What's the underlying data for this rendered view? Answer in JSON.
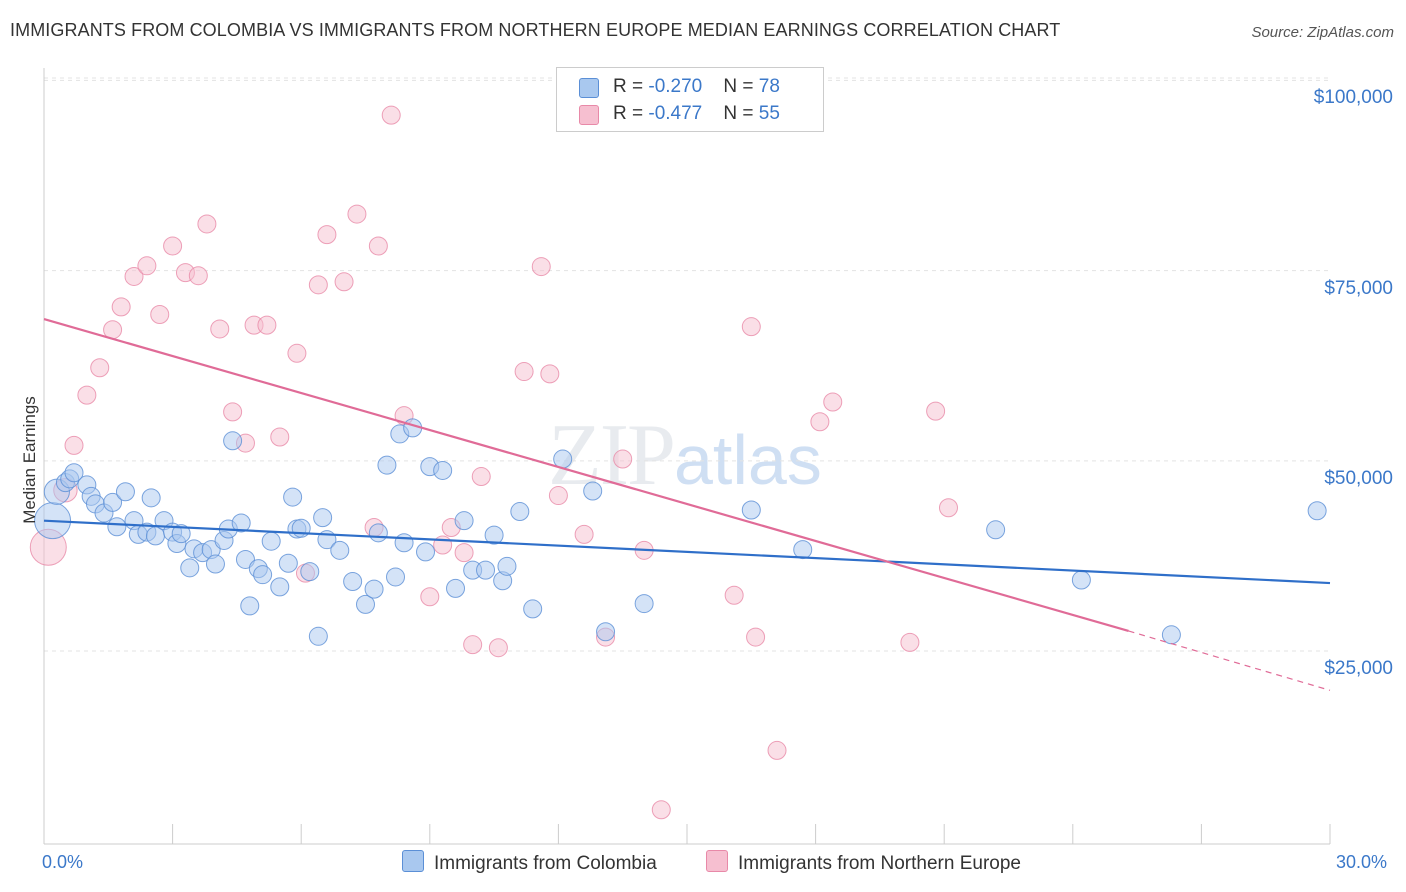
{
  "header": {
    "title": "IMMIGRANTS FROM COLOMBIA VS IMMIGRANTS FROM NORTHERN EUROPE MEDIAN EARNINGS CORRELATION CHART",
    "source": "Source: ZipAtlas.com"
  },
  "watermark": {
    "zip": "ZIP",
    "atlas": "atlas"
  },
  "stats": {
    "colombia": {
      "r_label": "R = ",
      "r": "-0.270",
      "n_label": "N = ",
      "n": "78"
    },
    "northern_europe": {
      "r_label": "R = ",
      "r": "-0.477",
      "n_label": "N = ",
      "n": "55"
    }
  },
  "legend": {
    "colombia": "Immigrants from Colombia",
    "northern_europe": "Immigrants from Northern Europe"
  },
  "colors": {
    "colombia_fill": "#a9c8ef",
    "colombia_stroke": "#5b8fd6",
    "colombia_line": "#2f6fc9",
    "ne_fill": "#f6bfd0",
    "ne_stroke": "#e889a8",
    "ne_line": "#e06b97",
    "axis_text": "#3b78c9"
  },
  "chart_data": {
    "type": "scatter",
    "xlabel": "",
    "ylabel": "Median Earnings",
    "xlim": [
      0,
      30
    ],
    "ylim": [
      2000,
      104000
    ],
    "x_tick_labels": {
      "left": "0.0%",
      "right": "30.0%"
    },
    "y_ticks": [
      {
        "value": 25000,
        "label": "$25,000"
      },
      {
        "value": 50000,
        "label": "$50,000"
      },
      {
        "value": 75000,
        "label": "$75,000"
      },
      {
        "value": 100000,
        "label": "$100,000"
      }
    ],
    "grid": "horizontal dashed",
    "legend_position": "bottom-center",
    "series": [
      {
        "name": "Immigrants from Colombia",
        "trend": {
          "x": [
            0,
            30
          ],
          "y": [
            44500,
            36300
          ]
        },
        "points": [
          {
            "x": 0.2,
            "y": 44500,
            "s": 2
          },
          {
            "x": 0.3,
            "y": 48300,
            "s": 1.4
          },
          {
            "x": 0.5,
            "y": 49500
          },
          {
            "x": 0.6,
            "y": 50000
          },
          {
            "x": 0.7,
            "y": 50800
          },
          {
            "x": 1.0,
            "y": 49200
          },
          {
            "x": 1.1,
            "y": 47700
          },
          {
            "x": 1.2,
            "y": 46700
          },
          {
            "x": 1.4,
            "y": 45500
          },
          {
            "x": 1.6,
            "y": 46900
          },
          {
            "x": 1.7,
            "y": 43700
          },
          {
            "x": 1.9,
            "y": 48300
          },
          {
            "x": 2.1,
            "y": 44500
          },
          {
            "x": 2.2,
            "y": 42700
          },
          {
            "x": 2.4,
            "y": 43000
          },
          {
            "x": 2.5,
            "y": 47500
          },
          {
            "x": 2.6,
            "y": 42500
          },
          {
            "x": 2.8,
            "y": 44500
          },
          {
            "x": 3.0,
            "y": 43000
          },
          {
            "x": 3.1,
            "y": 41500
          },
          {
            "x": 3.2,
            "y": 42800
          },
          {
            "x": 3.4,
            "y": 38300
          },
          {
            "x": 3.5,
            "y": 40800
          },
          {
            "x": 3.7,
            "y": 40300
          },
          {
            "x": 3.9,
            "y": 40700
          },
          {
            "x": 4.0,
            "y": 38800
          },
          {
            "x": 4.2,
            "y": 41900
          },
          {
            "x": 4.3,
            "y": 43400
          },
          {
            "x": 4.4,
            "y": 55000
          },
          {
            "x": 4.6,
            "y": 44200
          },
          {
            "x": 4.7,
            "y": 39400
          },
          {
            "x": 4.8,
            "y": 33300
          },
          {
            "x": 5.0,
            "y": 38200
          },
          {
            "x": 5.1,
            "y": 37400
          },
          {
            "x": 5.3,
            "y": 41800
          },
          {
            "x": 5.5,
            "y": 35800
          },
          {
            "x": 5.7,
            "y": 38900
          },
          {
            "x": 5.8,
            "y": 47600
          },
          {
            "x": 5.9,
            "y": 43400
          },
          {
            "x": 6.0,
            "y": 43500
          },
          {
            "x": 6.2,
            "y": 37800
          },
          {
            "x": 6.4,
            "y": 29300
          },
          {
            "x": 6.5,
            "y": 44900
          },
          {
            "x": 6.6,
            "y": 42000
          },
          {
            "x": 6.9,
            "y": 40600
          },
          {
            "x": 7.2,
            "y": 36500
          },
          {
            "x": 7.5,
            "y": 33500
          },
          {
            "x": 7.7,
            "y": 35500
          },
          {
            "x": 7.8,
            "y": 42900
          },
          {
            "x": 8.0,
            "y": 51800
          },
          {
            "x": 8.2,
            "y": 37100
          },
          {
            "x": 8.3,
            "y": 55900
          },
          {
            "x": 8.4,
            "y": 41600
          },
          {
            "x": 8.6,
            "y": 56700
          },
          {
            "x": 8.9,
            "y": 40400
          },
          {
            "x": 9.0,
            "y": 51600
          },
          {
            "x": 9.3,
            "y": 51100
          },
          {
            "x": 9.6,
            "y": 35600
          },
          {
            "x": 9.8,
            "y": 44500
          },
          {
            "x": 10.0,
            "y": 38000
          },
          {
            "x": 10.3,
            "y": 38000
          },
          {
            "x": 10.5,
            "y": 42600
          },
          {
            "x": 10.7,
            "y": 36600
          },
          {
            "x": 10.8,
            "y": 38500
          },
          {
            "x": 11.1,
            "y": 45700
          },
          {
            "x": 11.4,
            "y": 32900
          },
          {
            "x": 12.1,
            "y": 52600
          },
          {
            "x": 12.8,
            "y": 48400
          },
          {
            "x": 13.1,
            "y": 29900
          },
          {
            "x": 14.0,
            "y": 33600
          },
          {
            "x": 16.5,
            "y": 45900
          },
          {
            "x": 17.7,
            "y": 40700
          },
          {
            "x": 22.2,
            "y": 43300
          },
          {
            "x": 24.2,
            "y": 36700
          },
          {
            "x": 26.3,
            "y": 29500
          },
          {
            "x": 29.7,
            "y": 45800
          }
        ]
      },
      {
        "name": "Immigrants from Northern Europe",
        "trend": {
          "x": [
            0,
            25.3
          ],
          "y": [
            71000,
            30000
          ]
        },
        "trend_dashed": {
          "x": [
            25.3,
            30
          ],
          "y": [
            30000,
            22200
          ]
        },
        "points": [
          {
            "x": 0.1,
            "y": 41000,
            "s": 2
          },
          {
            "x": 0.5,
            "y": 48500,
            "s": 1.3
          },
          {
            "x": 0.7,
            "y": 54400
          },
          {
            "x": 1.0,
            "y": 61000
          },
          {
            "x": 1.3,
            "y": 64600
          },
          {
            "x": 1.6,
            "y": 69600
          },
          {
            "x": 1.8,
            "y": 72600
          },
          {
            "x": 2.1,
            "y": 76600
          },
          {
            "x": 2.4,
            "y": 78000
          },
          {
            "x": 2.7,
            "y": 71600
          },
          {
            "x": 3.0,
            "y": 80600
          },
          {
            "x": 3.3,
            "y": 77100
          },
          {
            "x": 3.6,
            "y": 76700
          },
          {
            "x": 3.8,
            "y": 83500
          },
          {
            "x": 4.1,
            "y": 69700
          },
          {
            "x": 4.4,
            "y": 58800
          },
          {
            "x": 4.7,
            "y": 54700
          },
          {
            "x": 4.9,
            "y": 70200
          },
          {
            "x": 5.2,
            "y": 70200
          },
          {
            "x": 5.5,
            "y": 55500
          },
          {
            "x": 5.9,
            "y": 66500
          },
          {
            "x": 6.1,
            "y": 37600
          },
          {
            "x": 6.4,
            "y": 75500
          },
          {
            "x": 6.6,
            "y": 82100
          },
          {
            "x": 7.0,
            "y": 75900
          },
          {
            "x": 7.3,
            "y": 84800
          },
          {
            "x": 7.7,
            "y": 43600
          },
          {
            "x": 7.8,
            "y": 80600
          },
          {
            "x": 8.1,
            "y": 97800
          },
          {
            "x": 8.4,
            "y": 58300
          },
          {
            "x": 9.0,
            "y": 34500
          },
          {
            "x": 9.3,
            "y": 41300
          },
          {
            "x": 9.5,
            "y": 43600
          },
          {
            "x": 9.8,
            "y": 40300
          },
          {
            "x": 10.0,
            "y": 28200
          },
          {
            "x": 10.2,
            "y": 50300
          },
          {
            "x": 10.6,
            "y": 27800
          },
          {
            "x": 11.2,
            "y": 64100
          },
          {
            "x": 11.6,
            "y": 77900
          },
          {
            "x": 11.8,
            "y": 63800
          },
          {
            "x": 12.0,
            "y": 47800
          },
          {
            "x": 12.6,
            "y": 42700
          },
          {
            "x": 13.1,
            "y": 29200
          },
          {
            "x": 13.5,
            "y": 52600
          },
          {
            "x": 14.0,
            "y": 40600
          },
          {
            "x": 14.4,
            "y": 6500
          },
          {
            "x": 16.1,
            "y": 34700
          },
          {
            "x": 16.5,
            "y": 70000
          },
          {
            "x": 16.6,
            "y": 29200
          },
          {
            "x": 17.1,
            "y": 14300
          },
          {
            "x": 18.1,
            "y": 57500
          },
          {
            "x": 18.4,
            "y": 60100
          },
          {
            "x": 20.2,
            "y": 28500
          },
          {
            "x": 20.8,
            "y": 58900
          },
          {
            "x": 21.1,
            "y": 46200
          }
        ]
      }
    ]
  }
}
